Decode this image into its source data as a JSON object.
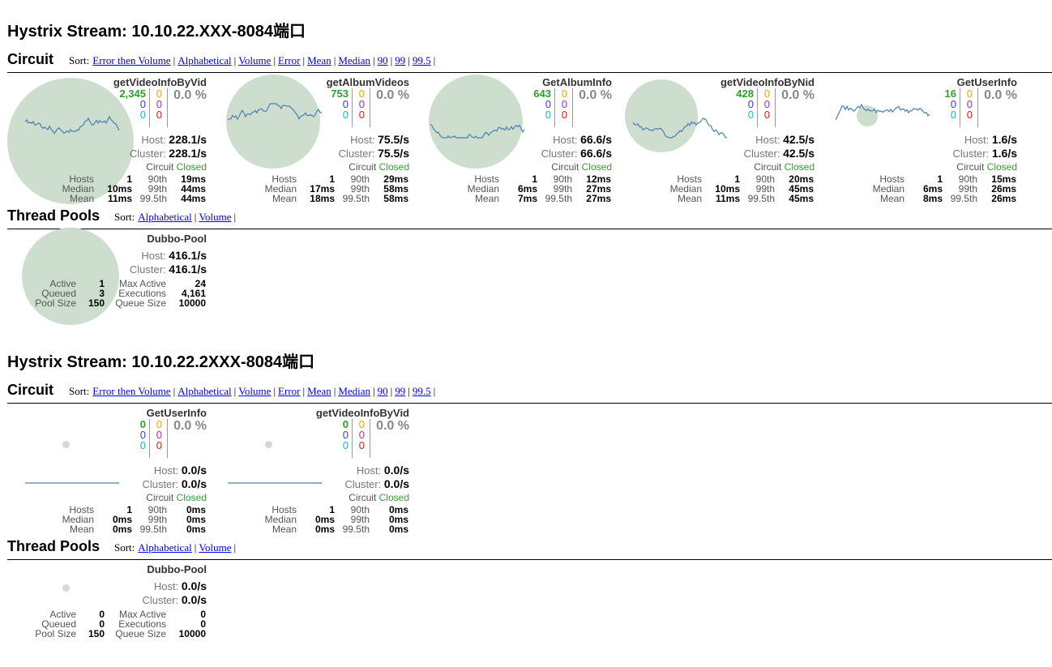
{
  "sort_label": "Sort:",
  "circuit_sorts": [
    "Error then Volume",
    "Alphabetical",
    "Volume",
    "Error",
    "Mean",
    "Median",
    "90",
    "99",
    "99.5"
  ],
  "pool_sorts": [
    "Alphabetical",
    "Volume"
  ],
  "labels": {
    "circuit": "Circuit",
    "thread_pools": "Thread Pools",
    "host": "Host:",
    "cluster": "Cluster:",
    "circuit_word": "Circuit",
    "hosts": "Hosts",
    "median": "Median",
    "mean": "Mean",
    "p90": "90th",
    "p99": "99th",
    "p995": "99.5th",
    "active": "Active",
    "queued": "Queued",
    "pool_size": "Pool Size",
    "max_active": "Max Active",
    "executions": "Executions",
    "queue_size": "Queue Size"
  },
  "colors": {
    "bubble": "#cadccb",
    "line": "#4a7fb5",
    "closed": "#2fa02f"
  },
  "streams": [
    {
      "title": "Hystrix Stream: 10.10.22.XXX-8084端口",
      "circuits": [
        {
          "name": "getVideoInfoByVid",
          "success": "2,345",
          "short_circuited": "0",
          "bad_request": "0",
          "timeout": "0",
          "rejected": "0",
          "failure": "0",
          "error_pct": "0.0 %",
          "host_rate": "228.1/s",
          "cluster_rate": "228.1/s",
          "status": "Closed",
          "hosts": "1",
          "median": "10ms",
          "mean": "11ms",
          "p90": "19ms",
          "p99": "44ms",
          "p995": "44ms",
          "bubble_size": "large"
        },
        {
          "name": "getAlbumVideos",
          "success": "753",
          "short_circuited": "0",
          "bad_request": "0",
          "timeout": "0",
          "rejected": "0",
          "failure": "0",
          "error_pct": "0.0 %",
          "host_rate": "75.5/s",
          "cluster_rate": "75.5/s",
          "status": "Closed",
          "hosts": "1",
          "median": "17ms",
          "mean": "18ms",
          "p90": "29ms",
          "p99": "58ms",
          "p995": "58ms",
          "bubble_size": "medium"
        },
        {
          "name": "GetAlbumInfo",
          "success": "643",
          "short_circuited": "0",
          "bad_request": "0",
          "timeout": "0",
          "rejected": "0",
          "failure": "0",
          "error_pct": "0.0 %",
          "host_rate": "66.6/s",
          "cluster_rate": "66.6/s",
          "status": "Closed",
          "hosts": "1",
          "median": "6ms",
          "mean": "7ms",
          "p90": "12ms",
          "p99": "27ms",
          "p995": "27ms",
          "bubble_size": "medium"
        },
        {
          "name": "getVideoInfoByNid",
          "success": "428",
          "short_circuited": "0",
          "bad_request": "0",
          "timeout": "0",
          "rejected": "0",
          "failure": "0",
          "error_pct": "0.0 %",
          "host_rate": "42.5/s",
          "cluster_rate": "42.5/s",
          "status": "Closed",
          "hosts": "1",
          "median": "10ms",
          "mean": "11ms",
          "p90": "20ms",
          "p99": "45ms",
          "p995": "45ms",
          "bubble_size": "small"
        },
        {
          "name": "GetUserInfo",
          "success": "16",
          "short_circuited": "0",
          "bad_request": "0",
          "timeout": "0",
          "rejected": "0",
          "failure": "0",
          "error_pct": "0.0 %",
          "host_rate": "1.6/s",
          "cluster_rate": "1.6/s",
          "status": "Closed",
          "hosts": "1",
          "median": "6ms",
          "mean": "8ms",
          "p90": "15ms",
          "p99": "26ms",
          "p995": "26ms",
          "bubble_size": "tiny"
        }
      ],
      "pools": [
        {
          "name": "Dubbo-Pool",
          "host_rate": "416.1/s",
          "cluster_rate": "416.1/s",
          "active": "1",
          "queued": "3",
          "pool_size": "150",
          "max_active": "24",
          "executions": "4,161",
          "queue_size": "10000",
          "bubble_size": "medium"
        }
      ]
    },
    {
      "title": "Hystrix Stream: 10.10.22.2XXX-8084端口",
      "circuits": [
        {
          "name": "GetUserInfo",
          "success": "0",
          "short_circuited": "0",
          "bad_request": "0",
          "timeout": "0",
          "rejected": "0",
          "failure": "0",
          "error_pct": "0.0 %",
          "host_rate": "0.0/s",
          "cluster_rate": "0.0/s",
          "status": "Closed",
          "hosts": "1",
          "median": "0ms",
          "mean": "0ms",
          "p90": "0ms",
          "p99": "0ms",
          "p995": "0ms",
          "bubble_size": "dot"
        },
        {
          "name": "getVideoInfoByVid",
          "success": "0",
          "short_circuited": "0",
          "bad_request": "0",
          "timeout": "0",
          "rejected": "0",
          "failure": "0",
          "error_pct": "0.0 %",
          "host_rate": "0.0/s",
          "cluster_rate": "0.0/s",
          "status": "Closed",
          "hosts": "1",
          "median": "0ms",
          "mean": "0ms",
          "p90": "0ms",
          "p99": "0ms",
          "p995": "0ms",
          "bubble_size": "dot"
        }
      ],
      "pools": [
        {
          "name": "Dubbo-Pool",
          "host_rate": "0.0/s",
          "cluster_rate": "0.0/s",
          "active": "0",
          "queued": "0",
          "pool_size": "150",
          "max_active": "0",
          "executions": "0",
          "queue_size": "10000",
          "bubble_size": "dot"
        }
      ]
    }
  ]
}
